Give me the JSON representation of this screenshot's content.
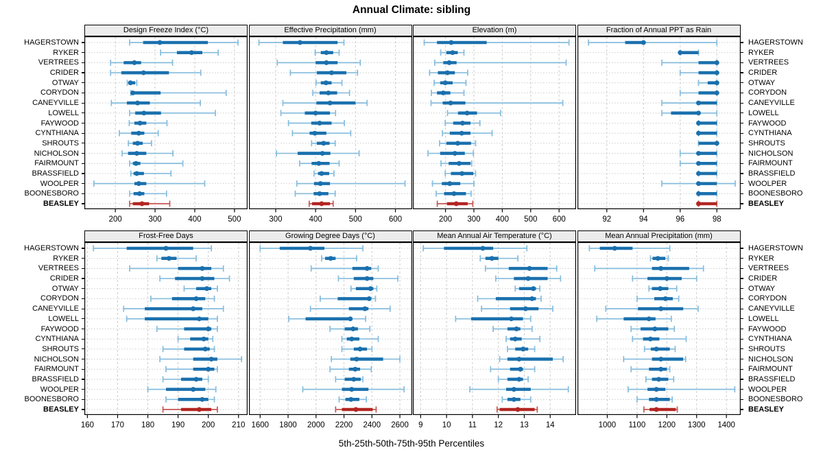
{
  "title": "Annual Climate: sibling",
  "xlabel": "5th-25th-50th-75th-95th Percentiles",
  "percentile_labels": [
    "5th",
    "25th",
    "50th",
    "75th",
    "95th"
  ],
  "stations": [
    "HAGERSTOWN",
    "RYKER",
    "VERTREES",
    "CRIDER",
    "OTWAY",
    "CORYDON",
    "CANEYVILLE",
    "LOWELL",
    "FAYWOOD",
    "CYNTHIANA",
    "SHROUTS",
    "NICHOLSON",
    "FAIRMOUNT",
    "BRASSFIELD",
    "WOOLPER",
    "BOONESBORO",
    "BEASLEY"
  ],
  "highlight_station": "BEASLEY",
  "colors": {
    "blue": "#1a70ad",
    "blue_light": "#85bcdd",
    "red": "#b22622",
    "red_light": "#c65550",
    "strip_bg": "#ececec",
    "grid": "#cccccc",
    "border": "#000000"
  },
  "chart_data": [
    {
      "type": "dotplot-interval",
      "row": 0,
      "col": 0,
      "title": "Design Freeze Index (°C)",
      "xlim": [
        122,
        533
      ],
      "ticks": [
        200,
        300,
        400,
        500
      ],
      "values": [
        [
          236,
          270,
          312,
          433,
          509
        ],
        [
          314,
          355,
          392,
          419,
          459
        ],
        [
          188,
          221,
          248,
          265,
          344
        ],
        [
          188,
          215,
          271,
          335,
          415
        ],
        [
          230,
          234,
          238,
          250,
          254
        ],
        [
          239,
          241,
          244,
          314,
          479
        ],
        [
          190,
          229,
          256,
          287,
          414
        ],
        [
          236,
          250,
          272,
          315,
          452
        ],
        [
          235,
          248,
          262,
          278,
          330
        ],
        [
          210,
          240,
          259,
          273,
          308
        ],
        [
          233,
          244,
          256,
          269,
          291
        ],
        [
          217,
          232,
          254,
          278,
          345
        ],
        [
          236,
          244,
          252,
          263,
          370
        ],
        [
          239,
          246,
          254,
          272,
          340
        ],
        [
          146,
          248,
          259,
          278,
          425
        ],
        [
          236,
          246,
          261,
          273,
          329
        ],
        [
          236,
          244,
          267,
          285,
          337
        ]
      ]
    },
    {
      "type": "dotplot-interval",
      "row": 0,
      "col": 1,
      "title": "Effective Precipitation (mm)",
      "xlim": [
        233,
        642
      ],
      "ticks": [
        300,
        400,
        500,
        600
      ],
      "values": [
        [
          258,
          318,
          361,
          455,
          471
        ],
        [
          399,
          413,
          427,
          444,
          459
        ],
        [
          304,
          400,
          427,
          455,
          512
        ],
        [
          337,
          403,
          440,
          477,
          505
        ],
        [
          401,
          413,
          426,
          440,
          466
        ],
        [
          393,
          410,
          432,
          454,
          485
        ],
        [
          318,
          402,
          436,
          500,
          529
        ],
        [
          313,
          373,
          400,
          436,
          450
        ],
        [
          332,
          389,
          410,
          440,
          472
        ],
        [
          342,
          385,
          398,
          427,
          488
        ],
        [
          390,
          403,
          420,
          435,
          449
        ],
        [
          302,
          355,
          417,
          437,
          509
        ],
        [
          360,
          390,
          408,
          435,
          459
        ],
        [
          396,
          406,
          415,
          434,
          446
        ],
        [
          353,
          396,
          412,
          436,
          624
        ],
        [
          349,
          395,
          410,
          432,
          449
        ],
        [
          384,
          391,
          415,
          436,
          444
        ]
      ]
    },
    {
      "type": "dotplot-interval",
      "row": 0,
      "col": 2,
      "title": "Elevation (m)",
      "xlim": [
        85,
        660
      ],
      "ticks": [
        200,
        300,
        400,
        500,
        600
      ],
      "values": [
        [
          125,
          170,
          220,
          345,
          635
        ],
        [
          183,
          203,
          225,
          243,
          265
        ],
        [
          162,
          192,
          213,
          239,
          625
        ],
        [
          144,
          173,
          207,
          233,
          278
        ],
        [
          160,
          181,
          199,
          225,
          272
        ],
        [
          150,
          170,
          192,
          217,
          265
        ],
        [
          149,
          190,
          218,
          270,
          613
        ],
        [
          207,
          244,
          276,
          311,
          394
        ],
        [
          199,
          227,
          260,
          288,
          321
        ],
        [
          189,
          215,
          257,
          288,
          364
        ],
        [
          179,
          203,
          243,
          290,
          306
        ],
        [
          138,
          181,
          233,
          268,
          298
        ],
        [
          184,
          211,
          248,
          288,
          292
        ],
        [
          199,
          219,
          258,
          298,
          306
        ],
        [
          154,
          187,
          215,
          252,
          300
        ],
        [
          167,
          195,
          230,
          272,
          290
        ],
        [
          171,
          205,
          238,
          278,
          296
        ]
      ]
    },
    {
      "type": "dotplot-interval",
      "row": 0,
      "col": 3,
      "title": "Fraction of Annual PPT as Rain",
      "xlim": [
        90.4,
        99.3
      ],
      "ticks": [
        92,
        94,
        96,
        98
      ],
      "values": [
        [
          91,
          93,
          94,
          94,
          98
        ],
        [
          96,
          96,
          96,
          97,
          97
        ],
        [
          95,
          97,
          98,
          98,
          98
        ],
        [
          96,
          97,
          98,
          98,
          98
        ],
        [
          97,
          97.5,
          98,
          98,
          98
        ],
        [
          96,
          97,
          98,
          98,
          98
        ],
        [
          95,
          97,
          97,
          98,
          98
        ],
        [
          95,
          95.5,
          97,
          97,
          98
        ],
        [
          97,
          97,
          97,
          98,
          98
        ],
        [
          97,
          97,
          97,
          98,
          98
        ],
        [
          97,
          97,
          98,
          98,
          98
        ],
        [
          96,
          97,
          97,
          98,
          98
        ],
        [
          96,
          97,
          97,
          98,
          98
        ],
        [
          97,
          97,
          97,
          98,
          98
        ],
        [
          95,
          97,
          97,
          98,
          99
        ],
        [
          97,
          97,
          97,
          98,
          98
        ],
        [
          97,
          97,
          97,
          98,
          98
        ]
      ]
    },
    {
      "type": "dotplot-interval",
      "row": 1,
      "col": 0,
      "title": "Frost-Free Days",
      "xlim": [
        159,
        213
      ],
      "ticks": [
        160,
        170,
        180,
        190,
        200,
        210
      ],
      "values": [
        [
          162,
          173,
          186,
          195,
          201
        ],
        [
          183,
          184.5,
          187,
          189.5,
          196
        ],
        [
          174,
          190,
          198,
          201,
          205
        ],
        [
          184,
          189,
          198,
          202,
          207
        ],
        [
          192,
          196,
          199.5,
          201,
          203
        ],
        [
          181,
          188,
          196,
          199,
          202
        ],
        [
          172,
          179,
          195,
          198,
          205
        ],
        [
          173,
          179,
          197,
          200,
          203
        ],
        [
          183,
          192,
          200,
          201,
          203
        ],
        [
          190,
          194,
          198.5,
          200,
          201.5
        ],
        [
          185,
          192,
          199,
          200.5,
          202
        ],
        [
          184,
          195,
          201,
          203,
          211
        ],
        [
          186,
          195,
          200,
          202,
          203
        ],
        [
          185,
          191,
          196,
          198,
          200
        ],
        [
          180,
          186,
          195,
          199,
          202.5
        ],
        [
          186,
          190,
          198,
          200,
          202
        ],
        [
          185,
          191,
          197,
          201,
          203
        ]
      ]
    },
    {
      "type": "dotplot-interval",
      "row": 1,
      "col": 1,
      "title": "Growing Degree Days (°C)",
      "xlim": [
        1520,
        2688
      ],
      "ticks": [
        1600,
        1800,
        2000,
        2200,
        2400,
        2600
      ],
      "values": [
        [
          1600,
          1740,
          1960,
          2060,
          2335
        ],
        [
          2040,
          2065,
          2105,
          2140,
          2290
        ],
        [
          1965,
          2260,
          2365,
          2395,
          2445
        ],
        [
          2160,
          2270,
          2365,
          2410,
          2585
        ],
        [
          2250,
          2285,
          2390,
          2410,
          2435
        ],
        [
          2030,
          2155,
          2380,
          2395,
          2425
        ],
        [
          1960,
          2235,
          2350,
          2375,
          2530
        ],
        [
          1805,
          1925,
          2245,
          2260,
          2355
        ],
        [
          2100,
          2205,
          2265,
          2300,
          2385
        ],
        [
          2185,
          2220,
          2255,
          2310,
          2445
        ],
        [
          2185,
          2270,
          2315,
          2365,
          2400
        ],
        [
          2110,
          2245,
          2290,
          2480,
          2600
        ],
        [
          2100,
          2235,
          2280,
          2315,
          2395
        ],
        [
          2140,
          2205,
          2270,
          2320,
          2335
        ],
        [
          1905,
          2185,
          2255,
          2375,
          2630
        ],
        [
          2165,
          2210,
          2250,
          2310,
          2360
        ],
        [
          2140,
          2185,
          2285,
          2405,
          2430
        ]
      ]
    },
    {
      "type": "dotplot-interval",
      "row": 1,
      "col": 2,
      "title": "Mean Annual Air Temperature (°C)",
      "xlim": [
        8.7,
        15.0
      ],
      "ticks": [
        9,
        10,
        11,
        12,
        13,
        14
      ],
      "values": [
        [
          9.1,
          9.9,
          11.4,
          11.8,
          13.1
        ],
        [
          11.3,
          11.5,
          11.75,
          12.0,
          12.75
        ],
        [
          11.5,
          12.4,
          13.2,
          13.9,
          14.25
        ],
        [
          11.9,
          12.6,
          13.15,
          13.9,
          14.4
        ],
        [
          12.65,
          12.8,
          13.35,
          13.45,
          13.6
        ],
        [
          11.2,
          11.9,
          13.3,
          13.45,
          13.65
        ],
        [
          11.35,
          12.45,
          13.05,
          13.55,
          14.1
        ],
        [
          10.35,
          10.95,
          12.5,
          12.95,
          13.25
        ],
        [
          11.8,
          12.35,
          12.7,
          12.85,
          13.3
        ],
        [
          12.3,
          12.45,
          12.65,
          12.9,
          13.6
        ],
        [
          12.35,
          12.65,
          12.95,
          13.15,
          13.4
        ],
        [
          12.05,
          12.35,
          12.8,
          14.1,
          14.5
        ],
        [
          11.7,
          12.45,
          12.85,
          12.95,
          13.4
        ],
        [
          12.0,
          12.35,
          12.8,
          12.95,
          13.15
        ],
        [
          10.9,
          12.3,
          12.6,
          13.25,
          14.7
        ],
        [
          12.15,
          12.35,
          12.6,
          12.85,
          13.25
        ],
        [
          11.95,
          12.05,
          12.75,
          13.4,
          13.5
        ]
      ]
    },
    {
      "type": "dotplot-interval",
      "row": 1,
      "col": 3,
      "title": "Mean Annual Precipitation (mm)",
      "xlim": [
        900,
        1448
      ],
      "ticks": [
        1000,
        1100,
        1200,
        1300,
        1400
      ],
      "values": [
        [
          940,
          975,
          1025,
          1085,
          1210
        ],
        [
          1145,
          1152,
          1170,
          1195,
          1205
        ],
        [
          958,
          1150,
          1180,
          1275,
          1323
        ],
        [
          1085,
          1135,
          1200,
          1250,
          1300
        ],
        [
          1140,
          1150,
          1178,
          1205,
          1233
        ],
        [
          1100,
          1158,
          1195,
          1220,
          1240
        ],
        [
          995,
          1103,
          1180,
          1255,
          1305
        ],
        [
          965,
          1055,
          1140,
          1162,
          1215
        ],
        [
          1080,
          1112,
          1160,
          1205,
          1225
        ],
        [
          1085,
          1120,
          1145,
          1175,
          1265
        ],
        [
          1125,
          1146,
          1165,
          1210,
          1228
        ],
        [
          1055,
          1150,
          1180,
          1255,
          1263
        ],
        [
          1080,
          1140,
          1180,
          1200,
          1210
        ],
        [
          1130,
          1150,
          1173,
          1205,
          1223
        ],
        [
          1070,
          1135,
          1165,
          1195,
          1428
        ],
        [
          1100,
          1140,
          1165,
          1210,
          1218
        ],
        [
          1123,
          1142,
          1165,
          1230,
          1235
        ]
      ]
    }
  ]
}
